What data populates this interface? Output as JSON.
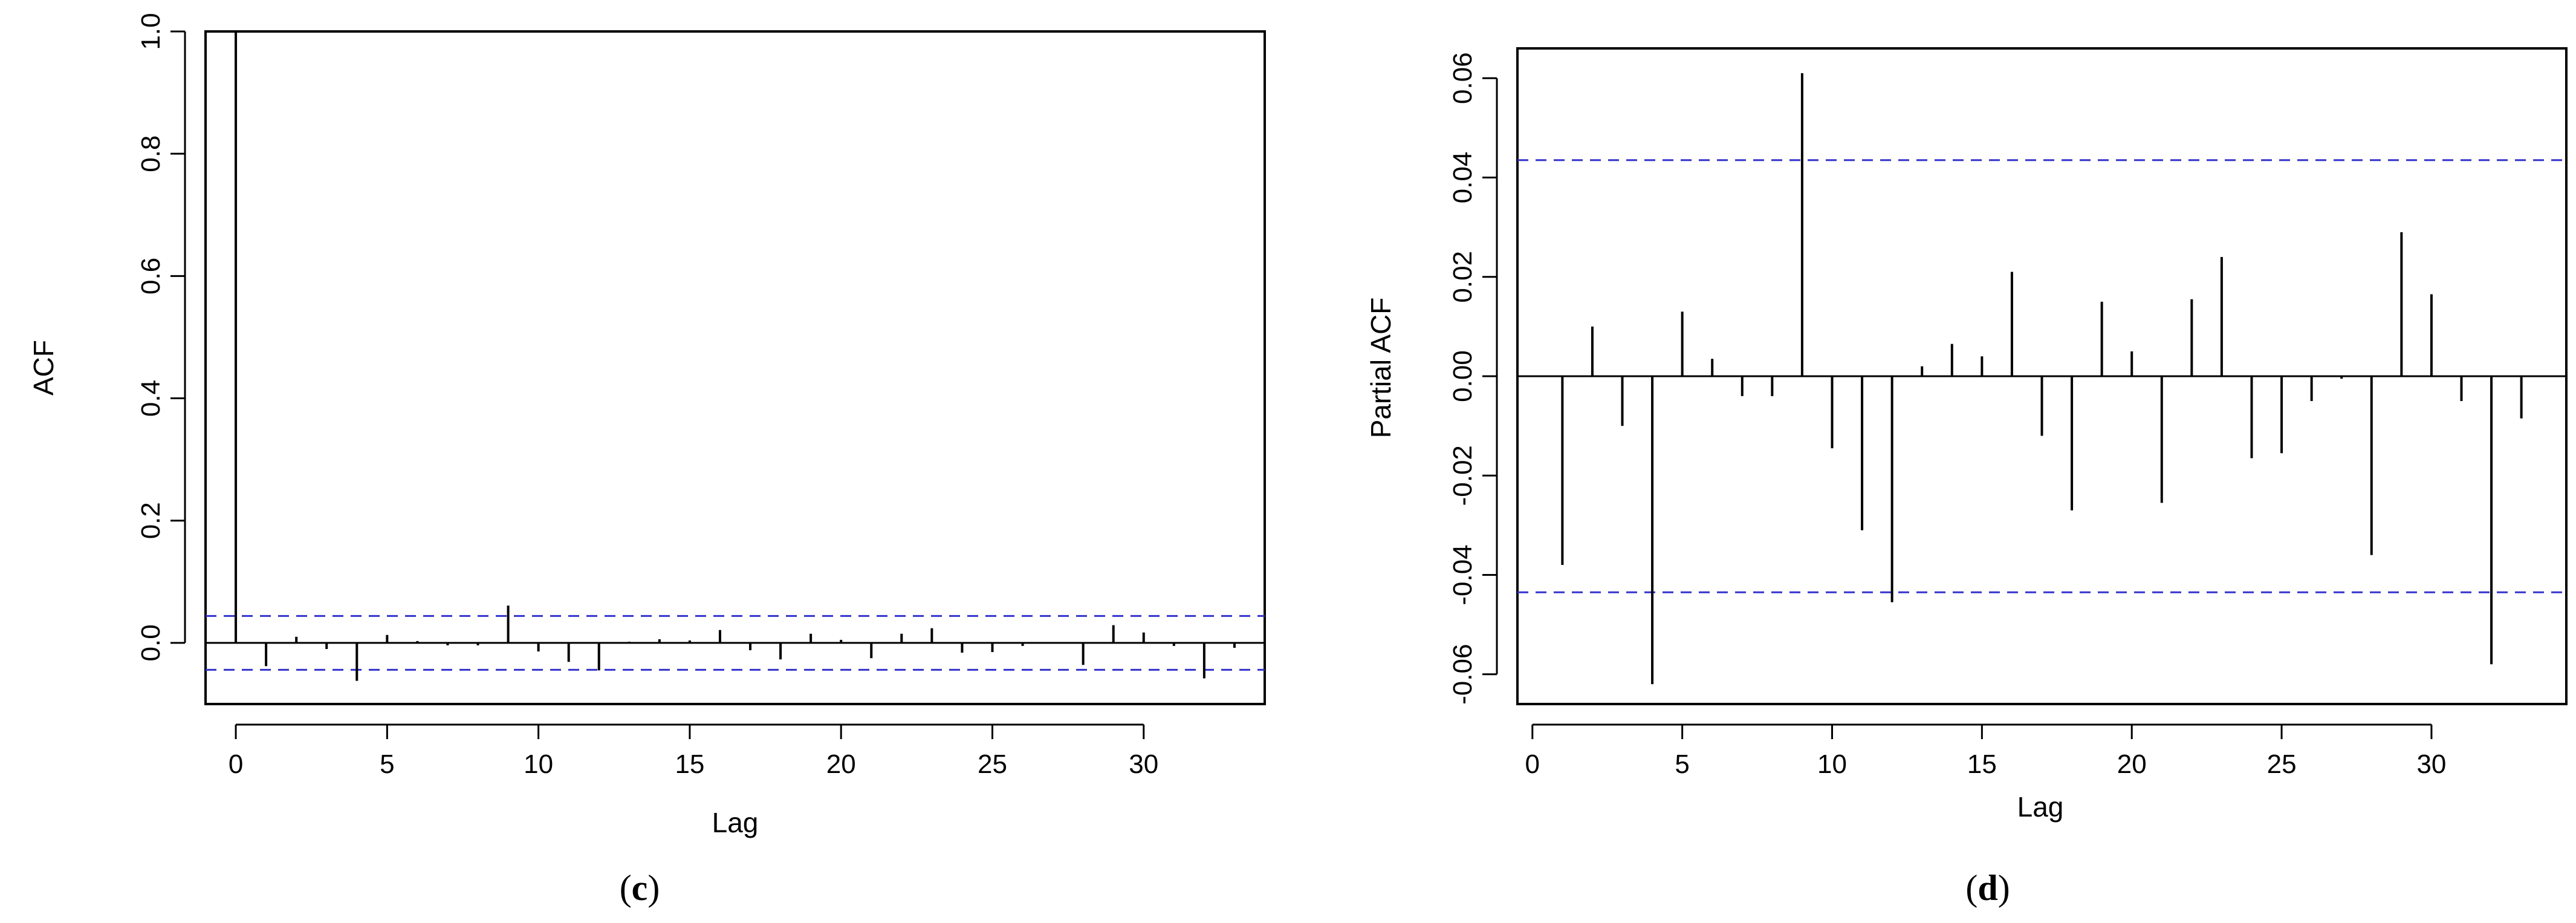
{
  "chart_data": [
    {
      "type": "bar",
      "subtype": "acf-correlogram",
      "panel_label": "c",
      "xlabel": "Lag",
      "ylabel": "ACF",
      "xlim": [
        -1,
        34
      ],
      "ylim": [
        -0.1,
        1.0
      ],
      "xticks": [
        0,
        5,
        10,
        15,
        20,
        25,
        30
      ],
      "yticks": [
        0.0,
        0.2,
        0.4,
        0.6,
        0.8,
        1.0
      ],
      "zero_line": true,
      "grid": false,
      "bar_color": "#000000",
      "confidence_color": "#3333cc",
      "confidence_bounds": [
        0.044,
        -0.044
      ],
      "lags": [
        0,
        1,
        2,
        3,
        4,
        5,
        6,
        7,
        8,
        9,
        10,
        11,
        12,
        13,
        14,
        15,
        16,
        17,
        18,
        19,
        20,
        21,
        22,
        23,
        24,
        25,
        26,
        27,
        28,
        29,
        30,
        31,
        32,
        33
      ],
      "values": [
        1.0,
        -0.038,
        0.01,
        -0.01,
        -0.062,
        0.013,
        0.003,
        -0.004,
        -0.004,
        0.061,
        -0.014,
        -0.031,
        -0.045,
        0.002,
        0.006,
        0.004,
        0.021,
        -0.012,
        -0.027,
        0.015,
        0.005,
        -0.025,
        0.015,
        0.024,
        -0.016,
        -0.015,
        -0.005,
        -0.001,
        -0.036,
        0.029,
        0.017,
        -0.005,
        -0.058,
        -0.008
      ]
    },
    {
      "type": "bar",
      "subtype": "pacf-correlogram",
      "panel_label": "d",
      "xlabel": "Lag",
      "ylabel": "Partial ACF",
      "xlim": [
        -0.5,
        34.5
      ],
      "ylim": [
        -0.066,
        0.066
      ],
      "xticks": [
        0,
        5,
        10,
        15,
        20,
        25,
        30
      ],
      "yticks": [
        -0.06,
        -0.04,
        -0.02,
        0.0,
        0.02,
        0.04,
        0.06
      ],
      "zero_line": true,
      "grid": false,
      "bar_color": "#000000",
      "confidence_color": "#3333cc",
      "confidence_bounds": [
        0.0435,
        -0.0435
      ],
      "lags": [
        1,
        2,
        3,
        4,
        5,
        6,
        7,
        8,
        9,
        10,
        11,
        12,
        13,
        14,
        15,
        16,
        17,
        18,
        19,
        20,
        21,
        22,
        23,
        24,
        25,
        26,
        27,
        28,
        29,
        30,
        31,
        32,
        33
      ],
      "values": [
        -0.038,
        0.01,
        -0.01,
        -0.062,
        0.013,
        0.0035,
        -0.004,
        -0.004,
        0.061,
        -0.0145,
        -0.031,
        -0.0455,
        0.002,
        0.0065,
        0.004,
        0.021,
        -0.012,
        -0.027,
        0.015,
        0.005,
        -0.0255,
        0.0155,
        0.024,
        -0.0165,
        -0.0155,
        -0.005,
        -0.0005,
        -0.036,
        0.029,
        0.0165,
        -0.005,
        -0.058,
        -0.0085
      ]
    }
  ]
}
